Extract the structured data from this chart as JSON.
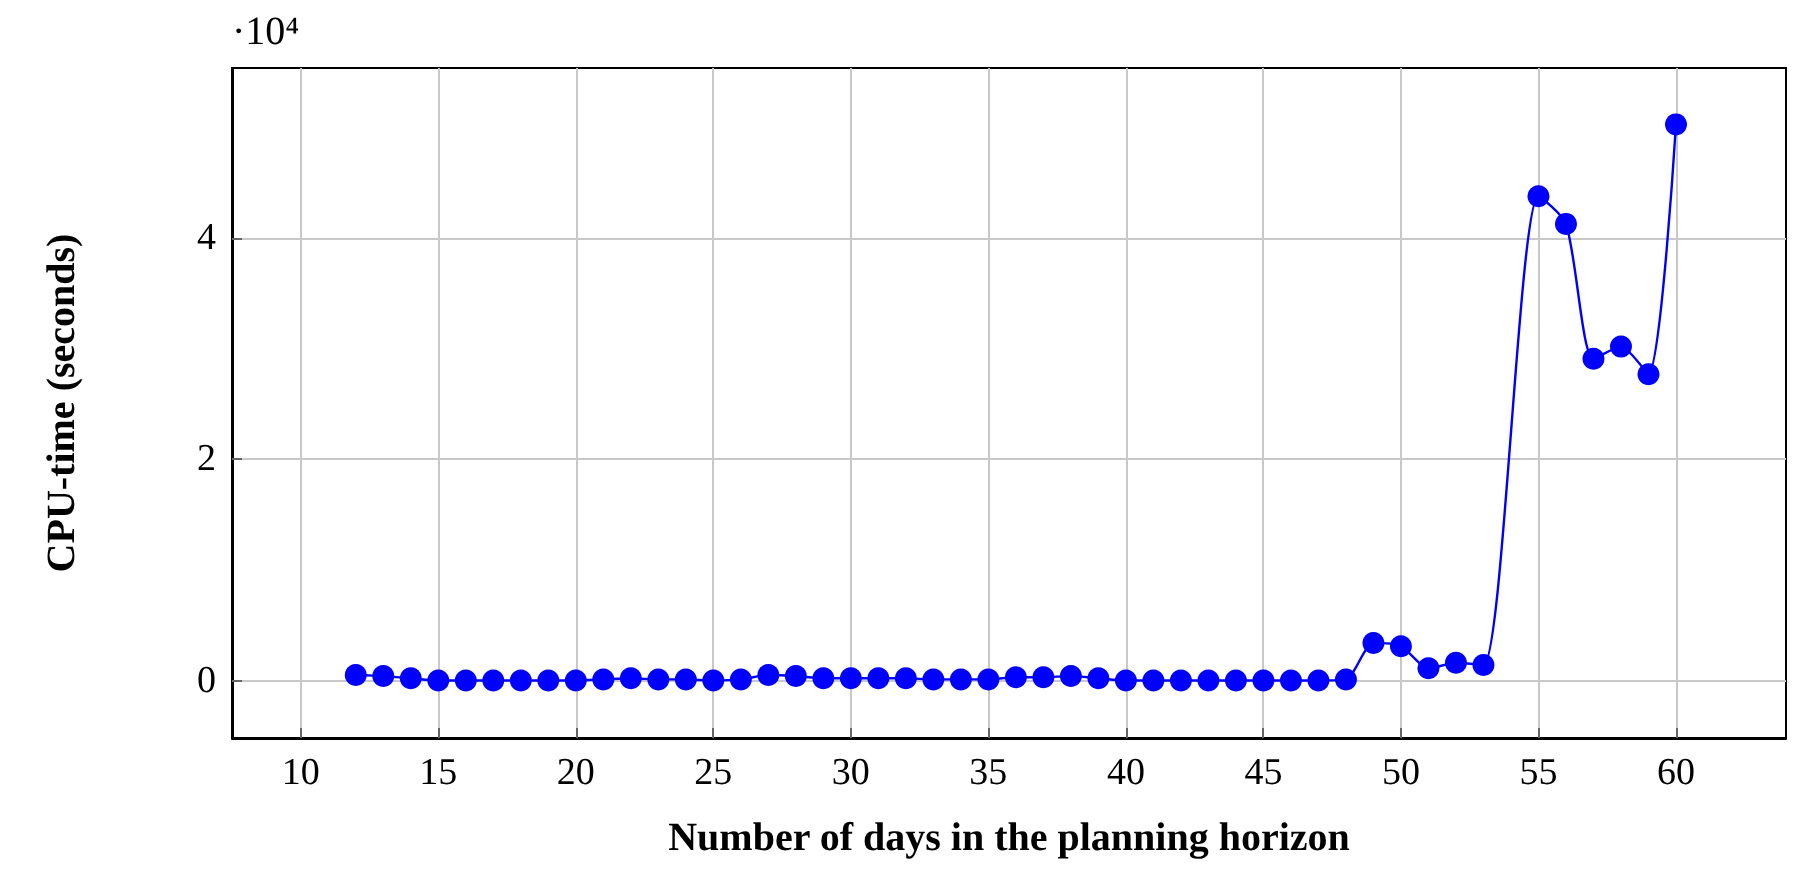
{
  "chart_data": {
    "type": "line",
    "xlabel": "Number of days in the planning horizon",
    "ylabel": "CPU-time (seconds)",
    "annotations": [
      "·10⁴"
    ],
    "x": [
      12,
      13,
      14,
      15,
      16,
      17,
      18,
      19,
      20,
      21,
      22,
      23,
      24,
      25,
      26,
      27,
      28,
      29,
      30,
      31,
      32,
      33,
      34,
      35,
      36,
      37,
      38,
      39,
      40,
      41,
      42,
      43,
      44,
      45,
      46,
      47,
      48,
      49,
      50,
      51,
      52,
      53,
      55,
      56,
      57,
      58,
      59,
      60
    ],
    "series": [
      {
        "color": "#0000ff",
        "values": [
          0.05,
          0.04,
          0.02,
          0,
          0,
          0,
          0,
          0,
          0,
          0.01,
          0.02,
          0.01,
          0.01,
          0,
          0.01,
          0.05,
          0.04,
          0.02,
          0.02,
          0.02,
          0.02,
          0.01,
          0.01,
          0.01,
          0.03,
          0.03,
          0.04,
          0.02,
          0,
          0,
          0,
          0,
          0,
          0,
          0,
          0,
          0.01,
          0.34,
          0.31,
          0.11,
          0.16,
          0.14,
          4.38,
          4.13,
          2.91,
          3.02,
          2.77,
          5.03
        ]
      }
    ],
    "xlim": [
      7.5,
      64
    ],
    "xticks": [
      10,
      15,
      20,
      25,
      30,
      35,
      40,
      45,
      50,
      55,
      60
    ],
    "ylim": [
      -0.52,
      5.54
    ],
    "yticks": [
      0,
      2,
      4
    ],
    "grid": true,
    "marker": "circle",
    "line_style": "solid"
  }
}
